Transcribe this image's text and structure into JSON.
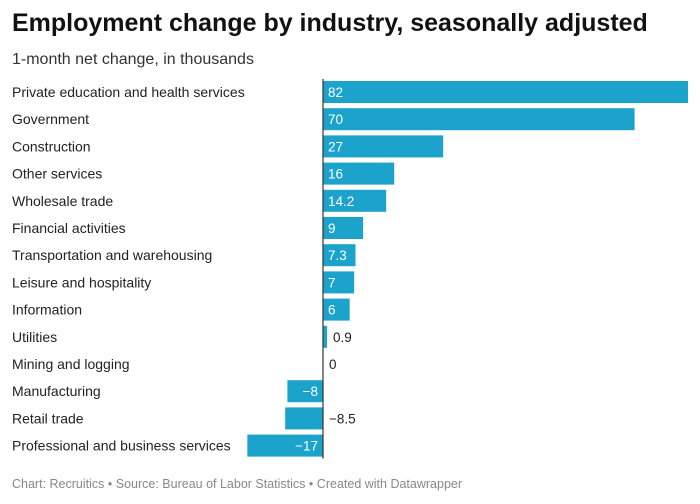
{
  "header": {
    "title": "Employment change by industry, seasonally adjusted",
    "subtitle": "1-month net change, in thousands"
  },
  "footer": {
    "chart_credit": "Chart: Recruitics",
    "separator": "•",
    "source": "Source: Bureau of Labor Statistics",
    "created": "Created with Datawrapper"
  },
  "colors": {
    "bar": "#1ba3cc",
    "axis": "#333333",
    "label_inside": "#ffffff",
    "label_outside": "#222222"
  },
  "chart_data": {
    "type": "bar",
    "orientation": "horizontal",
    "title": "Employment change by industry, seasonally adjusted",
    "subtitle": "1-month net change, in thousands",
    "xlabel": "",
    "ylabel": "",
    "grid": false,
    "xlim": [
      -17,
      82
    ],
    "categories": [
      "Private education and health services",
      "Government",
      "Construction",
      "Other services",
      "Wholesale trade",
      "Financial activities",
      "Transportation and warehousing",
      "Leisure and hospitality",
      "Information",
      "Utilities",
      "Mining and logging",
      "Manufacturing",
      "Retail trade",
      "Professional and business services"
    ],
    "values": [
      82,
      70,
      27,
      16,
      14.2,
      9,
      7.3,
      7,
      6,
      0.9,
      0,
      -8,
      -8.5,
      -17
    ],
    "value_labels": [
      "82",
      "70",
      "27",
      "16",
      "14.2",
      "9",
      "7.3",
      "7",
      "6",
      "0.9",
      "0",
      "−8",
      "−8.5",
      "−17"
    ]
  }
}
